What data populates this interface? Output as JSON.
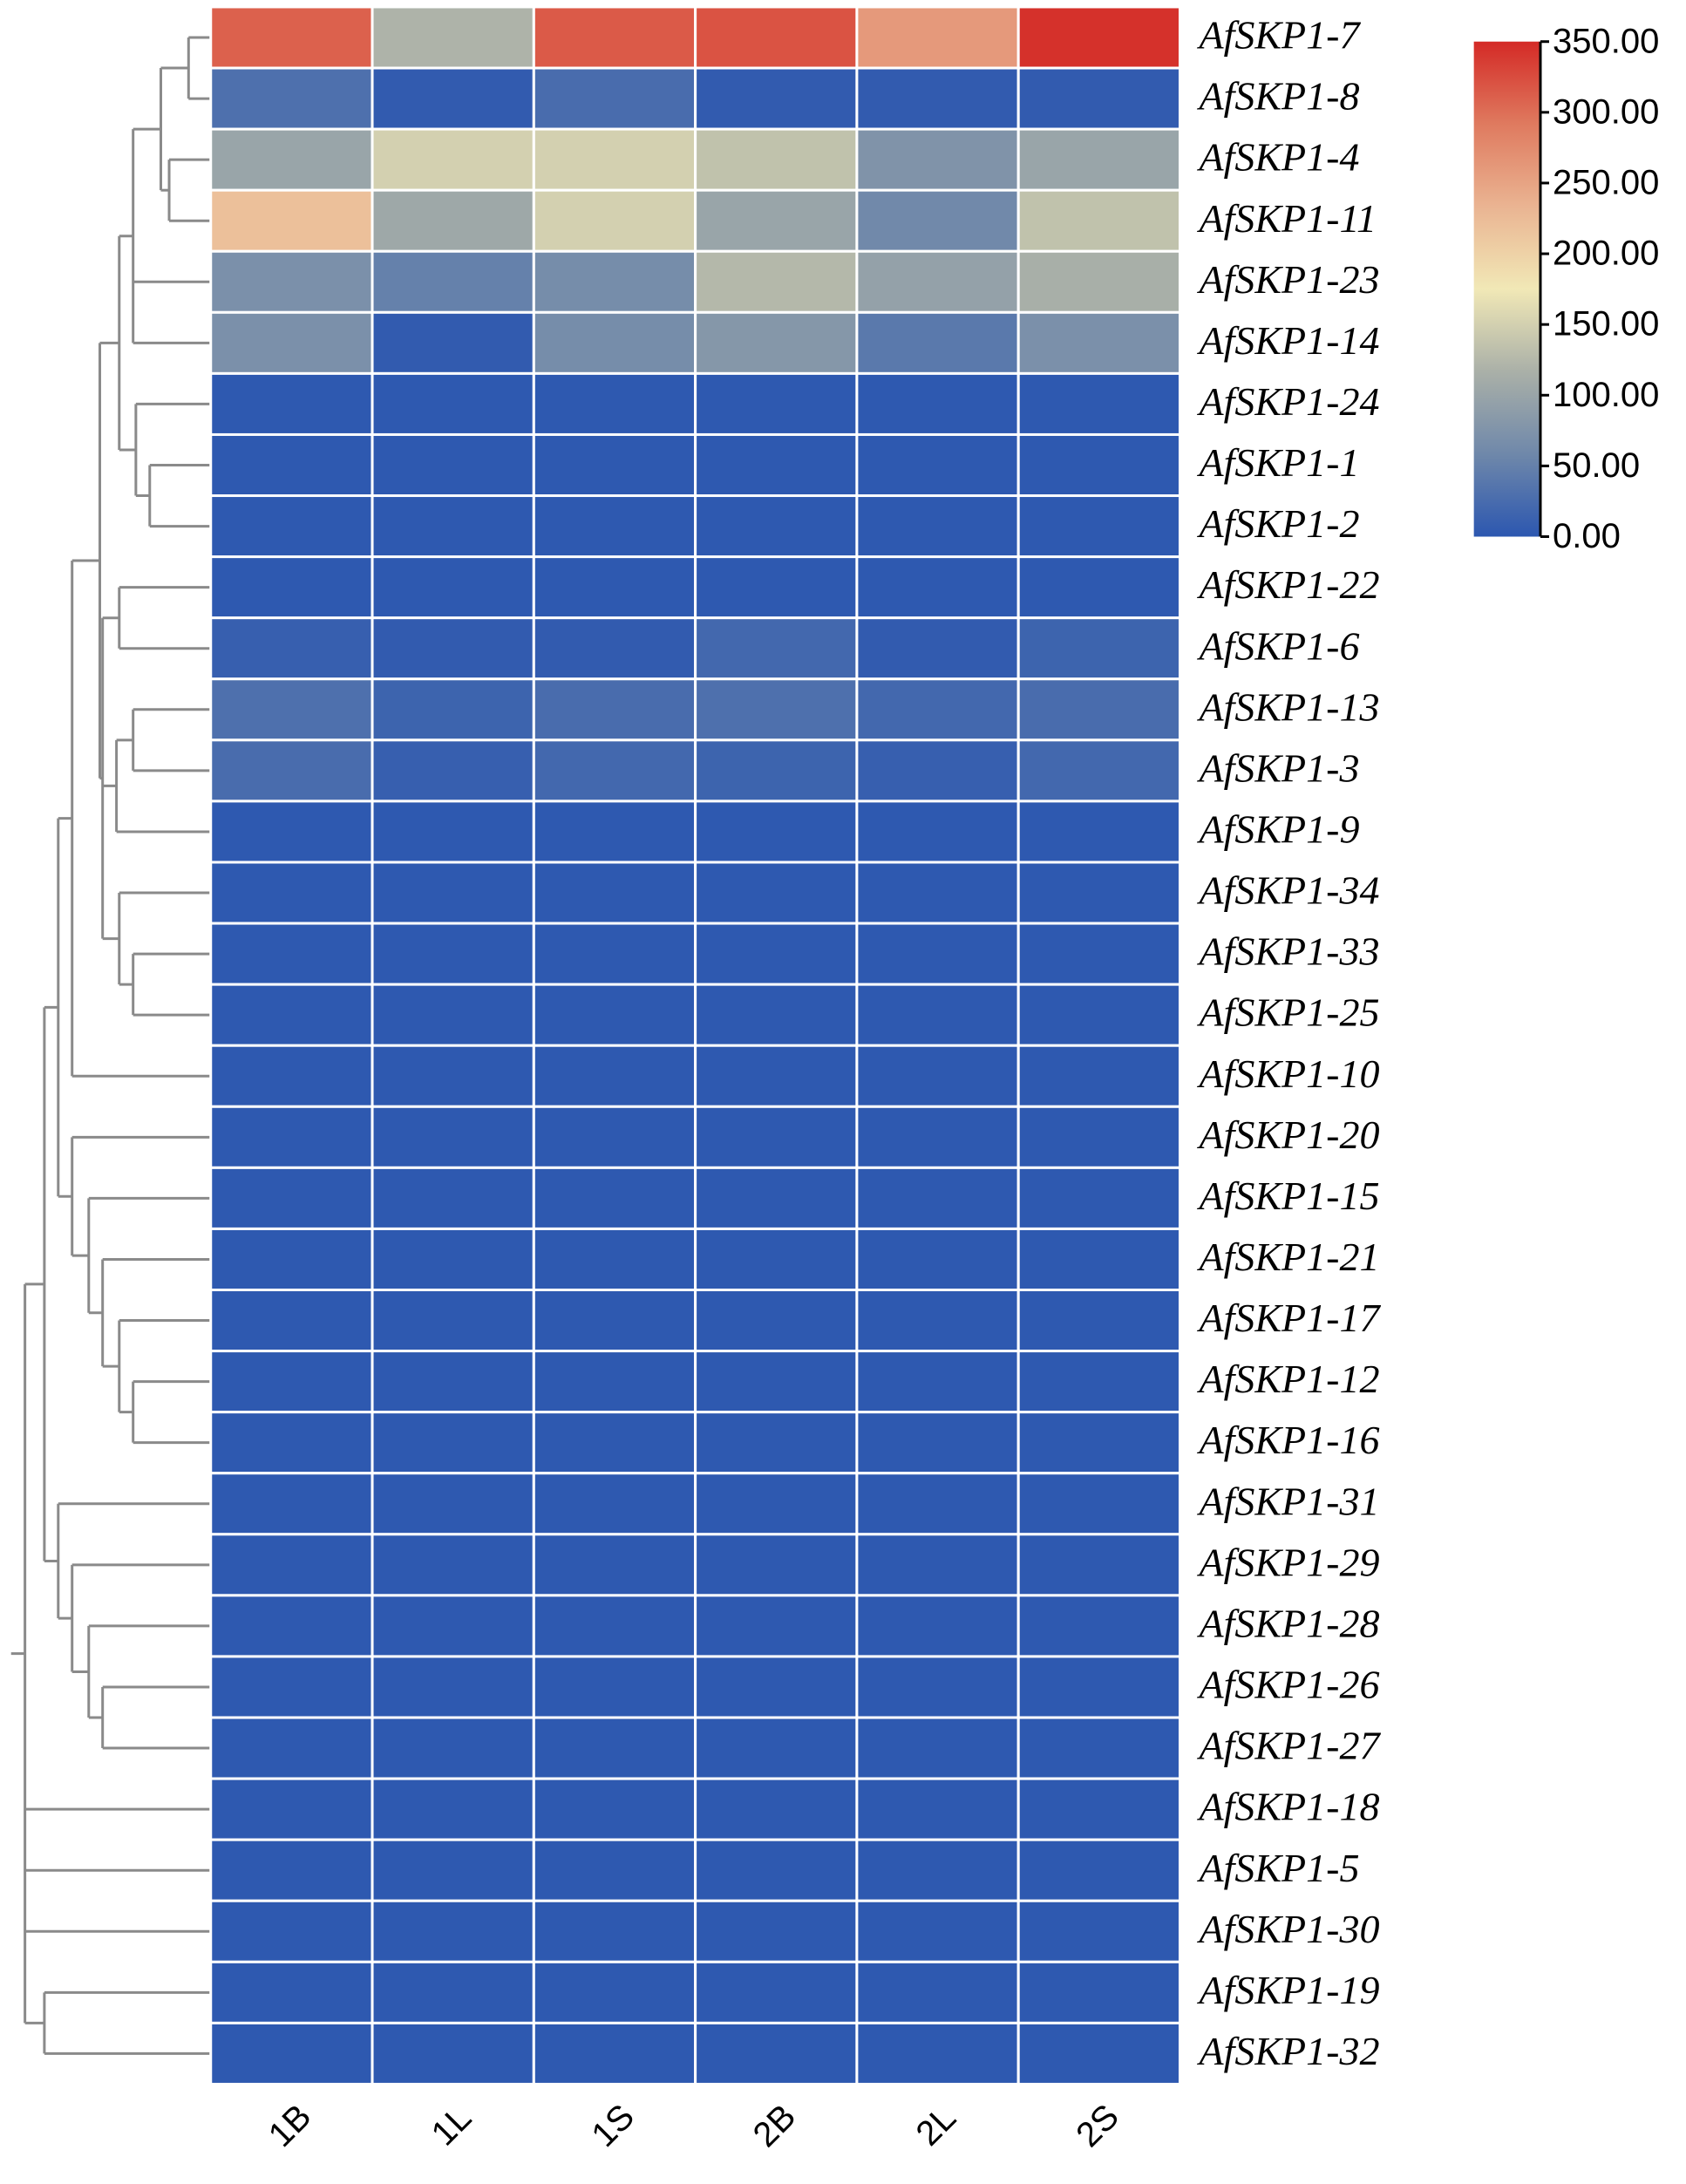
{
  "chart_data": {
    "type": "heatmap",
    "rows": [
      "AfSKP1-7",
      "AfSKP1-8",
      "AfSKP1-4",
      "AfSKP1-11",
      "AfSKP1-23",
      "AfSKP1-14",
      "AfSKP1-24",
      "AfSKP1-1",
      "AfSKP1-2",
      "AfSKP1-22",
      "AfSKP1-6",
      "AfSKP1-13",
      "AfSKP1-3",
      "AfSKP1-9",
      "AfSKP1-34",
      "AfSKP1-33",
      "AfSKP1-25",
      "AfSKP1-10",
      "AfSKP1-20",
      "AfSKP1-15",
      "AfSKP1-21",
      "AfSKP1-17",
      "AfSKP1-12",
      "AfSKP1-16",
      "AfSKP1-31",
      "AfSKP1-29",
      "AfSKP1-28",
      "AfSKP1-26",
      "AfSKP1-27",
      "AfSKP1-18",
      "AfSKP1-5",
      "AfSKP1-30",
      "AfSKP1-19",
      "AfSKP1-32"
    ],
    "columns": [
      "1B",
      "1L",
      "1S",
      "2B",
      "2L",
      "2S"
    ],
    "values": [
      [
        310,
        120,
        315,
        320,
        260,
        345
      ],
      [
        30,
        5,
        25,
        5,
        5,
        5
      ],
      [
        100,
        150,
        150,
        135,
        75,
        100
      ],
      [
        220,
        105,
        150,
        100,
        60,
        135
      ],
      [
        70,
        50,
        65,
        125,
        95,
        115
      ],
      [
        70,
        5,
        65,
        80,
        40,
        70
      ],
      [
        2,
        2,
        2,
        2,
        2,
        2
      ],
      [
        2,
        2,
        2,
        2,
        2,
        2
      ],
      [
        2,
        2,
        2,
        2,
        2,
        2
      ],
      [
        2,
        2,
        2,
        2,
        2,
        2
      ],
      [
        10,
        5,
        5,
        20,
        5,
        15
      ],
      [
        30,
        15,
        25,
        30,
        20,
        25
      ],
      [
        25,
        10,
        20,
        15,
        10,
        20
      ],
      [
        2,
        2,
        2,
        2,
        2,
        2
      ],
      [
        2,
        2,
        2,
        2,
        2,
        2
      ],
      [
        2,
        2,
        2,
        2,
        2,
        2
      ],
      [
        2,
        2,
        2,
        2,
        2,
        2
      ],
      [
        2,
        2,
        2,
        2,
        2,
        2
      ],
      [
        2,
        2,
        2,
        2,
        2,
        2
      ],
      [
        2,
        2,
        2,
        2,
        2,
        2
      ],
      [
        2,
        2,
        2,
        2,
        2,
        2
      ],
      [
        2,
        2,
        2,
        2,
        2,
        2
      ],
      [
        2,
        2,
        2,
        2,
        2,
        2
      ],
      [
        2,
        2,
        2,
        2,
        2,
        2
      ],
      [
        2,
        2,
        2,
        2,
        2,
        2
      ],
      [
        2,
        2,
        2,
        2,
        2,
        2
      ],
      [
        2,
        2,
        2,
        2,
        2,
        2
      ],
      [
        2,
        2,
        2,
        2,
        2,
        2
      ],
      [
        2,
        2,
        2,
        2,
        2,
        2
      ],
      [
        2,
        2,
        2,
        2,
        2,
        2
      ],
      [
        2,
        2,
        2,
        2,
        2,
        2
      ],
      [
        2,
        2,
        2,
        2,
        2,
        2
      ],
      [
        2,
        2,
        2,
        2,
        2,
        2
      ],
      [
        2,
        2,
        2,
        2,
        2,
        2
      ]
    ],
    "zlim": [
      0,
      350
    ],
    "zticks": [
      {
        "value": 0,
        "label": "0.00"
      },
      {
        "value": 50,
        "label": "50.00"
      },
      {
        "value": 100,
        "label": "100.00"
      },
      {
        "value": 150,
        "label": "150.00"
      },
      {
        "value": 200,
        "label": "200.00"
      },
      {
        "value": 250,
        "label": "250.00"
      },
      {
        "value": 300,
        "label": "300.00"
      },
      {
        "value": 350,
        "label": "350.00"
      }
    ],
    "colormap": [
      "#2c57b0",
      "#6f88aa",
      "#aab0a8",
      "#f1e8b6",
      "#eab492",
      "#df7a5f",
      "#d42a26"
    ]
  }
}
